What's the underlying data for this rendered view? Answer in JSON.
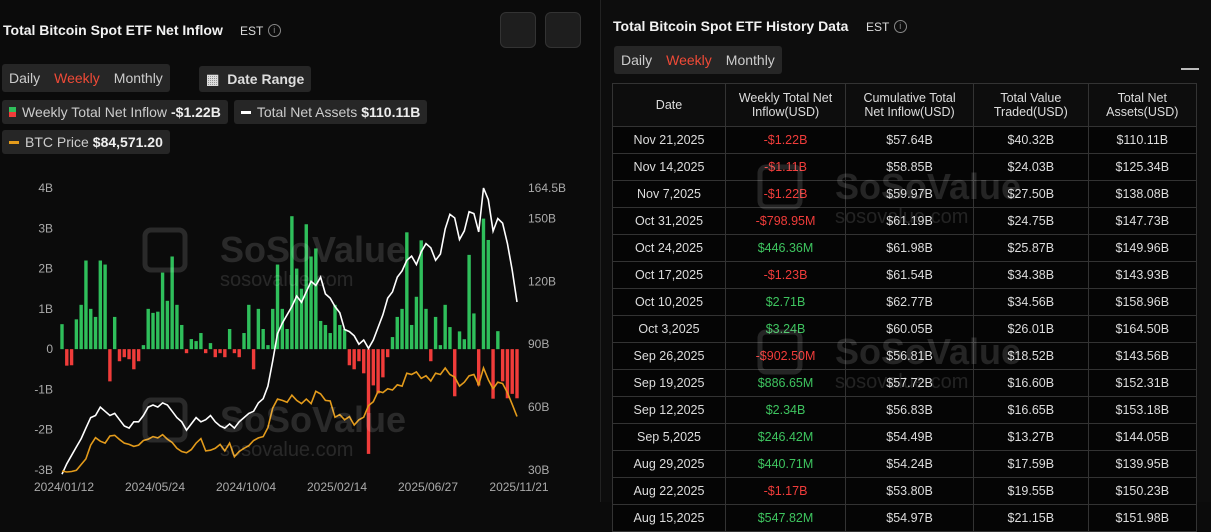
{
  "left_panel": {
    "title": "Total Bitcoin Spot ETF Net Inflow",
    "timezone": "EST",
    "tabs": [
      "Daily",
      "Weekly",
      "Monthly"
    ],
    "selected_tab": 1,
    "date_range": "Date Range"
  },
  "watermark": {
    "brand": "SoSoValue",
    "url": "sosovalue.com"
  },
  "chart_data": {
    "type": "bar",
    "grid": false,
    "categories": [
      "2024/01/12",
      null,
      null,
      null,
      null,
      null,
      null,
      null,
      null,
      null,
      null,
      null,
      null,
      null,
      null,
      null,
      null,
      null,
      null,
      "2024/05/24",
      null,
      null,
      null,
      null,
      null,
      null,
      null,
      null,
      null,
      null,
      null,
      null,
      null,
      null,
      null,
      null,
      null,
      null,
      "2024/10/04",
      null,
      null,
      null,
      null,
      null,
      null,
      null,
      null,
      null,
      null,
      null,
      null,
      null,
      null,
      null,
      null,
      null,
      null,
      "2025/02/14",
      null,
      null,
      null,
      null,
      null,
      null,
      null,
      null,
      null,
      null,
      null,
      null,
      null,
      null,
      null,
      null,
      null,
      null,
      "2025/06/27",
      null,
      null,
      null,
      null,
      null,
      null,
      null,
      null,
      null,
      null,
      null,
      null,
      null,
      null,
      null,
      null,
      null,
      null,
      "2025/11/21"
    ],
    "ylim": [
      -3,
      4
    ],
    "yticks": [
      {
        "value": 4,
        "label": "4B"
      },
      {
        "value": 3,
        "label": "3B"
      },
      {
        "value": 2,
        "label": "2B"
      },
      {
        "value": 1,
        "label": "1B"
      },
      0,
      {
        "value": -1,
        "label": "-1B"
      },
      {
        "value": -2,
        "label": "-2B"
      },
      {
        "value": -3,
        "label": "-3B"
      }
    ],
    "y2lim": [
      30,
      164.5
    ],
    "y2ticks": [
      {
        "value": 164.5,
        "label": "164.5B"
      },
      {
        "value": 150,
        "label": "150B"
      },
      {
        "value": 120,
        "label": "120B"
      },
      {
        "value": 90,
        "label": "90B"
      },
      {
        "value": 60,
        "label": "60B"
      },
      {
        "value": 30,
        "label": "30B"
      }
    ],
    "series": [
      {
        "name": "Weekly Total Net Inflow",
        "type": "bar",
        "color": "#2fbf5b",
        "negative_color": "#f03c3a",
        "legend_value": "-$1.22B",
        "values": [
          0.62,
          -0.41,
          -0.4,
          0.74,
          1.1,
          2.2,
          1.0,
          0.8,
          2.2,
          2.1,
          -0.8,
          0.8,
          -0.3,
          -0.2,
          -0.25,
          -0.5,
          -0.3,
          0.1,
          1.0,
          0.9,
          0.93,
          1.9,
          1.2,
          2.3,
          1.1,
          0.6,
          -0.1,
          0.25,
          0.2,
          0.4,
          -0.1,
          0.15,
          -0.2,
          -0.1,
          -0.2,
          0.5,
          -0.1,
          -0.2,
          0.4,
          1.1,
          -0.5,
          1.0,
          0.5,
          0.1,
          1.0,
          2.1,
          1.0,
          0.5,
          3.3,
          2.0,
          1.5,
          3.1,
          2.3,
          2.5,
          0.7,
          0.6,
          0.4,
          1.1,
          0.6,
          0.5,
          -0.4,
          -0.5,
          -0.3,
          -0.6,
          -2.6,
          -0.9,
          -1.1,
          -0.7,
          -0.2,
          0.3,
          0.8,
          1.0,
          2.9,
          0.6,
          1.3,
          2.7,
          1.0,
          -0.3,
          0.8,
          0.1,
          1.1,
          0.54782,
          -1.17,
          0.44071,
          0.24642,
          2.34,
          0.88665,
          -0.9025,
          3.24,
          2.71,
          -1.23,
          0.44636,
          -0.79895,
          -1.22,
          -1.11,
          -1.22
        ]
      },
      {
        "name": "Total Net Assets",
        "type": "line",
        "axis": "y2",
        "color": "#ffffff",
        "legend_value": "$110.11B",
        "values": [
          28,
          33,
          37,
          41,
          45,
          50,
          55,
          56,
          60,
          58,
          56,
          57,
          54,
          51,
          50,
          53,
          53,
          56,
          60,
          61,
          60,
          62,
          61,
          58,
          55,
          53,
          49,
          52,
          55,
          53,
          54,
          56,
          53,
          51,
          50,
          52,
          50,
          53,
          55,
          57,
          58,
          62,
          64,
          70,
          82,
          95,
          100,
          104,
          108,
          113,
          110,
          115,
          120,
          118,
          122,
          114,
          112,
          108,
          105,
          97,
          96,
          94,
          90,
          92,
          88,
          92,
          98,
          104,
          112,
          115,
          122,
          125,
          130,
          132,
          128,
          134,
          138,
          136,
          130,
          133,
          145,
          151.98,
          150.23,
          139.95,
          144.05,
          153.18,
          152.31,
          143.56,
          164.5,
          158.96,
          143.93,
          149.96,
          147.73,
          138.08,
          125.34,
          110.11
        ]
      },
      {
        "name": "BTC Price",
        "type": "line",
        "axis": "hidden",
        "color": "#e39b1b",
        "legend_value": "$84,571.20",
        "values": [
          42500,
          41700,
          42100,
          43000,
          47500,
          51800,
          62500,
          68200,
          65500,
          64000,
          69500,
          70000,
          66800,
          64000,
          63000,
          61500,
          62500,
          66000,
          67000,
          69000,
          68000,
          70500,
          67000,
          64500,
          60000,
          57500,
          56500,
          59000,
          64000,
          67500,
          58000,
          58500,
          60000,
          63000,
          58000,
          64000,
          53500,
          57500,
          60000,
          62000,
          66000,
          68000,
          69000,
          76000,
          91000,
          98000,
          97000,
          95500,
          101000,
          97000,
          94500,
          98000,
          94500,
          104000,
          102000,
          97000,
          96500,
          84000,
          86000,
          82000,
          84500,
          78000,
          82000,
          84000,
          93000,
          96000,
          104000,
          103000,
          106000,
          105000,
          109000,
          108000,
          118000,
          117000,
          119000,
          114000,
          116000,
          112000,
          118000,
          117000,
          122000,
          117000,
          115000,
          108000,
          111000,
          116000,
          117000,
          109000,
          122000,
          113000,
          106000,
          111000,
          110000,
          103000,
          94000,
          84571.2
        ]
      }
    ]
  },
  "right_panel": {
    "title": "Total Bitcoin Spot ETF History Data",
    "timezone": "EST",
    "tabs": [
      "Daily",
      "Weekly",
      "Monthly"
    ],
    "selected_tab": 1,
    "table": {
      "columns": [
        "Date",
        "Weekly Total Net Inflow(USD)",
        "Cumulative Total Net Inflow(USD)",
        "Total Value Traded(USD)",
        "Total Net Assets(USD)"
      ],
      "rows": [
        [
          "Nov 21,2025",
          "-$1.22B",
          "$57.64B",
          "$40.32B",
          "$110.11B"
        ],
        [
          "Nov 14,2025",
          "-$1.11B",
          "$58.85B",
          "$24.03B",
          "$125.34B"
        ],
        [
          "Nov 7,2025",
          "-$1.22B",
          "$59.97B",
          "$27.50B",
          "$138.08B"
        ],
        [
          "Oct 31,2025",
          "-$798.95M",
          "$61.19B",
          "$24.75B",
          "$147.73B"
        ],
        [
          "Oct 24,2025",
          "$446.36M",
          "$61.98B",
          "$25.87B",
          "$149.96B"
        ],
        [
          "Oct 17,2025",
          "-$1.23B",
          "$61.54B",
          "$34.38B",
          "$143.93B"
        ],
        [
          "Oct 10,2025",
          "$2.71B",
          "$62.77B",
          "$34.56B",
          "$158.96B"
        ],
        [
          "Oct 3,2025",
          "$3.24B",
          "$60.05B",
          "$26.01B",
          "$164.50B"
        ],
        [
          "Sep 26,2025",
          "-$902.50M",
          "$56.81B",
          "$18.52B",
          "$143.56B"
        ],
        [
          "Sep 19,2025",
          "$886.65M",
          "$57.72B",
          "$16.60B",
          "$152.31B"
        ],
        [
          "Sep 12,2025",
          "$2.34B",
          "$56.83B",
          "$16.65B",
          "$153.18B"
        ],
        [
          "Sep 5,2025",
          "$246.42M",
          "$54.49B",
          "$13.27B",
          "$144.05B"
        ],
        [
          "Aug 29,2025",
          "$440.71M",
          "$54.24B",
          "$17.59B",
          "$139.95B"
        ],
        [
          "Aug 22,2025",
          "-$1.17B",
          "$53.80B",
          "$19.55B",
          "$150.23B"
        ],
        [
          "Aug 15,2025",
          "$547.82M",
          "$54.97B",
          "$21.15B",
          "$151.98B"
        ]
      ]
    }
  }
}
